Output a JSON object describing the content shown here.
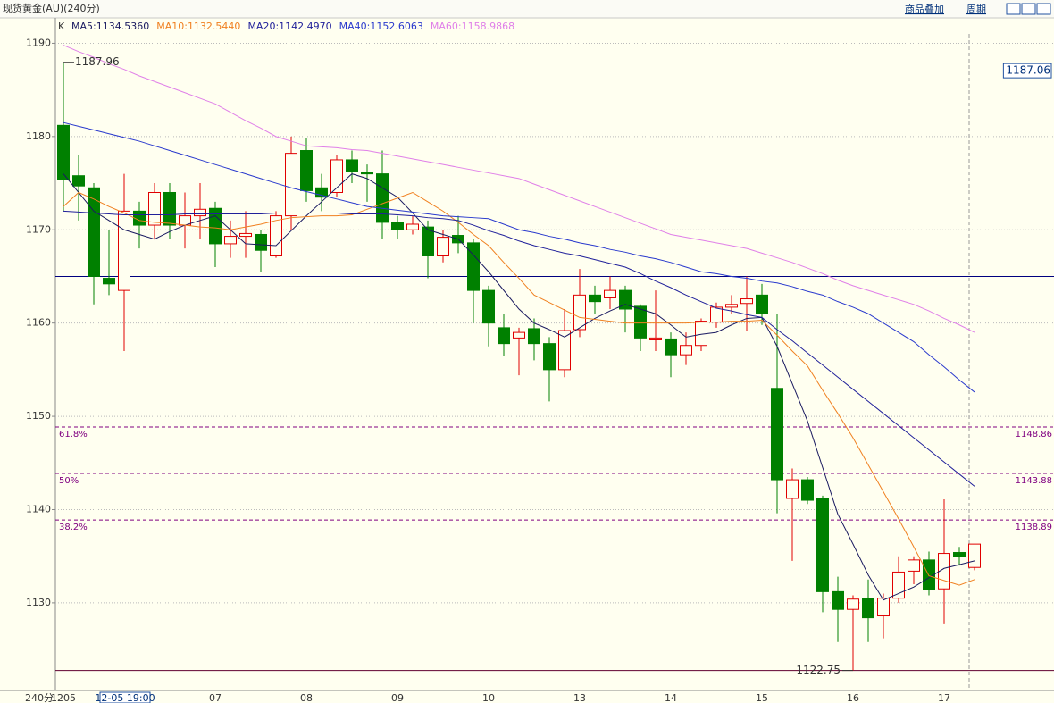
{
  "header": {
    "title": "现货黄金(AU)(240分)",
    "tools": [
      "商品叠加",
      "周期"
    ]
  },
  "chart_data": {
    "type": "candlestick",
    "legend_prefix": "K",
    "up_color": "#e00000",
    "down_color": "#008000",
    "categories": [
      "1205",
      null,
      null,
      null,
      null,
      null,
      null,
      null,
      null,
      null,
      "07",
      null,
      null,
      null,
      null,
      null,
      "08",
      null,
      null,
      null,
      null,
      null,
      "09",
      null,
      null,
      null,
      null,
      null,
      "10",
      null,
      null,
      null,
      null,
      null,
      "13",
      null,
      null,
      null,
      null,
      null,
      "14",
      null,
      null,
      null,
      null,
      null,
      "15",
      null,
      null,
      null,
      null,
      null,
      "16",
      null,
      null,
      null,
      null,
      null,
      "17",
      null,
      null
    ],
    "period_label": "240分",
    "cursor_label": "12-05 19:00",
    "open": [
      1181.2,
      1175.8,
      1174.5,
      1164.8,
      1163.5,
      1172,
      1170.5,
      1174,
      1170.5,
      1171.5,
      1172.3,
      1168.5,
      1169.3,
      1169.5,
      1167.2,
      1171.5,
      1178.5,
      1174.5,
      1174,
      1177.5,
      1176.2,
      1176,
      1170.8,
      1170.0,
      1170.3,
      1167.2,
      1169.4,
      1168.6,
      1163.5,
      1159.5,
      1158.4,
      1159.4,
      1157.8,
      1155,
      1159.3,
      1163,
      1162.7,
      1163.5,
      1161.8,
      1158.2,
      1158.3,
      1156.6,
      1157.6,
      1160.1,
      1161.7,
      1162.1,
      1163,
      1153.0,
      1141.2,
      1143.2,
      1141.2,
      1131.2,
      1129.3,
      1130.5,
      1128.6,
      1130.5,
      1133.4,
      1134.6,
      1131.5,
      1135.4,
      1133.8
    ],
    "high": [
      1187.96,
      1178,
      1175,
      1170,
      1176,
      1173,
      1175,
      1175,
      1174,
      1175,
      1173,
      1171,
      1172,
      1170,
      1172,
      1180,
      1179.8,
      1176,
      1178,
      1178.5,
      1177,
      1178.5,
      1171.5,
      1171.5,
      1171,
      1170,
      1171.5,
      1169,
      1164,
      1161,
      1159.5,
      1160.5,
      1158.5,
      1161.5,
      1165.8,
      1164,
      1165,
      1164,
      1162,
      1163.5,
      1159,
      1159,
      1160.5,
      1162.2,
      1163,
      1165,
      1164.2,
      1161,
      1144.4,
      1143.5,
      1141.5,
      1132.8,
      1130.8,
      1132.5,
      1131,
      1135,
      1135,
      1135.5,
      1141.1,
      1136,
      1136.3
    ],
    "low": [
      1172,
      1171,
      1162,
      1163,
      1157,
      1168,
      1169,
      1169,
      1168,
      1169,
      1166,
      1167,
      1167,
      1165.5,
      1167,
      1170,
      1173,
      1172,
      1173.5,
      1175,
      1173,
      1169,
      1169,
      1169.5,
      1164.8,
      1166.5,
      1167.5,
      1160,
      1157.5,
      1156.5,
      1154.4,
      1156,
      1151.6,
      1154.2,
      1158.5,
      1161,
      1161.5,
      1159,
      1157,
      1157,
      1154.2,
      1155.5,
      1157,
      1159.5,
      1161,
      1159.2,
      1159.8,
      1139.6,
      1134.5,
      1140.6,
      1129,
      1125.8,
      1122.75,
      1125.8,
      1126.2,
      1130,
      1132,
      1130.8,
      1127.7,
      1134,
      1133.5
    ],
    "close": [
      1175.4,
      1174.7,
      1165,
      1164.2,
      1172,
      1170.5,
      1174,
      1170.5,
      1171.5,
      1172.2,
      1168.5,
      1169.3,
      1169.6,
      1167.8,
      1171.5,
      1178.2,
      1174.2,
      1173.5,
      1177.5,
      1176.3,
      1176,
      1170.8,
      1170.0,
      1170.6,
      1167.2,
      1169.2,
      1168.6,
      1163.5,
      1160,
      1157.8,
      1159,
      1157.8,
      1155,
      1159.2,
      1163,
      1162.3,
      1163.5,
      1161.5,
      1158.4,
      1158.4,
      1156.6,
      1157.6,
      1160.2,
      1161.7,
      1162,
      1162.6,
      1161,
      1143.2,
      1143.2,
      1141,
      1131.2,
      1129.3,
      1130.4,
      1128.4,
      1130.5,
      1133.3,
      1134.6,
      1131.4,
      1135.3,
      1135,
      1136.3
    ],
    "series": [
      {
        "name": "MA5:1134.5360",
        "color": "#1a1a60",
        "values": [
          1176,
          1174,
          1172,
          1171,
          1170,
          1169.5,
          1169,
          1169.8,
          1170.5,
          1171,
          1171.5,
          1170,
          1168.5,
          1168.4,
          1168.3,
          1169.9,
          1171.5,
          1173,
          1174.5,
          1176,
          1175.5,
          1174.5,
          1173.5,
          1171.8,
          1170,
          1169.5,
          1169,
          1167.3,
          1165.5,
          1163.5,
          1161.5,
          1160,
          1159.3,
          1158.5,
          1159.5,
          1160.5,
          1161.3,
          1162,
          1161.5,
          1161,
          1159.8,
          1158.5,
          1158.8,
          1159,
          1159.8,
          1160.5,
          1160.6,
          1157.5,
          1153.5,
          1149.5,
          1144.5,
          1139.5,
          1136.3,
          1133,
          1130.3,
          1131,
          1131.7,
          1132.7,
          1133.7,
          1134.1,
          1134.5
        ]
      },
      {
        "name": "MA10:1132.5440",
        "color": "#f08020",
        "values": [
          1172.5,
          1174,
          1173.3,
          1172.5,
          1171.8,
          1171,
          1170.8,
          1170.7,
          1170.5,
          1170.3,
          1170.2,
          1170,
          1170.3,
          1170.6,
          1171,
          1171.3,
          1171.4,
          1171.5,
          1171.5,
          1171.6,
          1172.2,
          1172.8,
          1173.4,
          1174,
          1173,
          1172,
          1170.8,
          1169.5,
          1168.3,
          1166.5,
          1164.8,
          1163,
          1162.2,
          1161.4,
          1160.6,
          1160.4,
          1160.2,
          1160,
          1160,
          1160,
          1160,
          1160,
          1160.1,
          1160.1,
          1160.2,
          1160.2,
          1160.3,
          1158.7,
          1157,
          1155.4,
          1152.8,
          1150.3,
          1147.7,
          1144.8,
          1141.9,
          1139,
          1136,
          1132.9,
          1132.4,
          1131.9,
          1132.5
        ]
      },
      {
        "name": "MA20:1142.4970",
        "color": "#20209a",
        "values": [
          1172,
          1171.9,
          1171.8,
          1171.7,
          1171.6,
          1171.6,
          1171.6,
          1171.6,
          1171.7,
          1171.7,
          1171.7,
          1171.7,
          1171.7,
          1171.7,
          1171.8,
          1171.8,
          1171.8,
          1171.8,
          1171.8,
          1171.7,
          1171.7,
          1171.7,
          1171.6,
          1171.5,
          1171.3,
          1171.2,
          1171,
          1170.5,
          1169.9,
          1169.4,
          1168.8,
          1168.3,
          1167.9,
          1167.5,
          1167.2,
          1166.8,
          1166.4,
          1166,
          1165.3,
          1164.5,
          1163.8,
          1163,
          1162.3,
          1161.6,
          1161.3,
          1160.9,
          1160.6,
          1159.3,
          1158.1,
          1156.8,
          1155.5,
          1154.2,
          1152.9,
          1151.6,
          1150.3,
          1149,
          1147.7,
          1146.4,
          1145.1,
          1143.8,
          1142.5
        ]
      },
      {
        "name": "MA40:1152.6063",
        "color": "#2a3acd",
        "values": [
          1181.5,
          1181.1,
          1180.7,
          1180.3,
          1179.9,
          1179.5,
          1179,
          1178.5,
          1178,
          1177.5,
          1177,
          1176.5,
          1176,
          1175.5,
          1175,
          1174.5,
          1174.1,
          1173.7,
          1173.3,
          1172.9,
          1172.5,
          1172.3,
          1172.1,
          1171.9,
          1171.7,
          1171.5,
          1171.4,
          1171.3,
          1171.2,
          1170.6,
          1170,
          1169.7,
          1169.3,
          1169,
          1168.6,
          1168.3,
          1167.9,
          1167.6,
          1167.2,
          1166.9,
          1166.5,
          1166,
          1165.5,
          1165.3,
          1165,
          1164.8,
          1164.5,
          1164.3,
          1163.9,
          1163.4,
          1163,
          1162.3,
          1161.7,
          1161,
          1160,
          1159,
          1158,
          1156.6,
          1155.3,
          1153.9,
          1152.6
        ]
      },
      {
        "name": "MA60:1158.9868",
        "color": "#e080e8",
        "values": [
          1189.8,
          1189.1,
          1188.5,
          1187.8,
          1187.2,
          1186.5,
          1185.9,
          1185.3,
          1184.7,
          1184.1,
          1183.5,
          1182.6,
          1181.7,
          1180.9,
          1180,
          1179.5,
          1179,
          1178.9,
          1178.8,
          1178.6,
          1178.5,
          1178.2,
          1177.9,
          1177.6,
          1177.3,
          1177,
          1176.7,
          1176.4,
          1176.1,
          1175.8,
          1175.5,
          1174.9,
          1174.3,
          1173.7,
          1173.1,
          1172.5,
          1171.9,
          1171.3,
          1170.7,
          1170.1,
          1169.5,
          1169.2,
          1168.9,
          1168.6,
          1168.3,
          1168,
          1167.5,
          1167,
          1166.5,
          1165.9,
          1165.3,
          1164.6,
          1164,
          1163.5,
          1163,
          1162.5,
          1162,
          1161.3,
          1160.5,
          1159.8,
          1159
        ]
      }
    ],
    "ylim": [
      1120.7,
      1191
    ],
    "yticks": [
      1130,
      1140,
      1150,
      1160,
      1170,
      1180,
      1190
    ],
    "grid": true,
    "hlines": [
      {
        "value": 1165,
        "color": "#000080"
      },
      {
        "value": 1122.75,
        "color": "#600030"
      }
    ],
    "fib_lines": [
      {
        "label": "61.8%",
        "value": 1148.86
      },
      {
        "label": "50%",
        "value": 1143.88
      },
      {
        "label": "38.2%",
        "value": 1138.89
      }
    ],
    "fib_color": "#800080",
    "high_label": 1187.96,
    "low_label": 1122.75,
    "last_price": 1187.06
  }
}
